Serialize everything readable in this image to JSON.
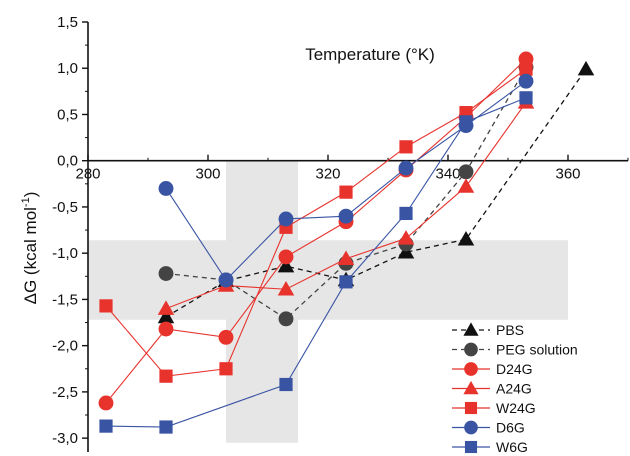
{
  "chart_data": {
    "type": "line",
    "xlabel": "Temperature (°K)",
    "ylabel_prefix": "ΔG (kcal mol",
    "ylabel_sup": "-1",
    "ylabel_suffix": ")",
    "xlim": [
      280,
      370
    ],
    "ylim": [
      -3.15,
      1.5
    ],
    "x_ticks": [
      280,
      300,
      320,
      340,
      360
    ],
    "x_tick_labels": [
      "280",
      "300",
      "320",
      "340",
      "360"
    ],
    "y_ticks": [
      1.5,
      1.0,
      0.5,
      0.0,
      -0.5,
      -1.0,
      -1.5,
      -2.0,
      -2.5,
      -3.0
    ],
    "y_tick_labels": [
      "1,5",
      "1,0",
      "0,5",
      "0,0",
      "-0,5",
      "-1,0",
      "-1,5",
      "-2,0",
      "-2,5",
      "-3,0"
    ],
    "shaded_regions": [
      {
        "x": [
          280,
          360
        ],
        "y": [
          -1.72,
          -0.86
        ],
        "color": "#e6e6e6"
      },
      {
        "x": [
          303,
          315
        ],
        "y": [
          -3.05,
          0.0
        ],
        "color": "#e6e6e6"
      }
    ],
    "series": [
      {
        "name": "PBS",
        "color": "#111111",
        "marker": "triangle",
        "dashed": true,
        "x": [
          293,
          303,
          313,
          323,
          333,
          343,
          363
        ],
        "y": [
          -1.69,
          -1.3,
          -1.14,
          -1.29,
          -0.99,
          -0.85,
          0.99
        ]
      },
      {
        "name": "PEG solution",
        "color": "#444444",
        "marker": "circle",
        "dashed": true,
        "x": [
          293,
          303,
          313,
          323,
          333,
          343,
          353
        ],
        "y": [
          -1.22,
          -1.29,
          -1.71,
          -1.11,
          -0.9,
          -0.12,
          1.01
        ]
      },
      {
        "name": "D24G",
        "color": "#e8332d",
        "marker": "circle",
        "dashed": false,
        "x": [
          283,
          293,
          303,
          313,
          323,
          333,
          343,
          353
        ],
        "y": [
          -2.62,
          -1.82,
          -1.91,
          -1.04,
          -0.66,
          -0.1,
          0.47,
          1.1
        ]
      },
      {
        "name": "A24G",
        "color": "#e8332d",
        "marker": "triangle",
        "dashed": false,
        "x": [
          293,
          303,
          313,
          323,
          333,
          343,
          353
        ],
        "y": [
          -1.6,
          -1.35,
          -1.39,
          -1.06,
          -0.84,
          -0.28,
          0.63
        ]
      },
      {
        "name": "W24G",
        "color": "#e8332d",
        "marker": "square",
        "dashed": false,
        "x": [
          283,
          293,
          303,
          313,
          323,
          333,
          343,
          353
        ],
        "y": [
          -1.57,
          -2.33,
          -2.25,
          -0.72,
          -0.34,
          0.15,
          0.52,
          0.99
        ]
      },
      {
        "name": "D6G",
        "color": "#3a54a4",
        "marker": "circle",
        "dashed": false,
        "x": [
          293,
          303,
          313,
          323,
          333,
          343,
          353
        ],
        "y": [
          -0.3,
          -1.29,
          -0.63,
          -0.6,
          -0.08,
          0.38,
          0.86
        ]
      },
      {
        "name": "W6G",
        "color": "#3a54a4",
        "marker": "square",
        "dashed": false,
        "x": [
          283,
          293,
          313,
          323,
          333,
          343,
          353
        ],
        "y": [
          -2.87,
          -2.88,
          -2.42,
          -1.31,
          -0.57,
          0.42,
          0.68
        ]
      }
    ],
    "legend_position": "bottom-right",
    "grid": false
  }
}
